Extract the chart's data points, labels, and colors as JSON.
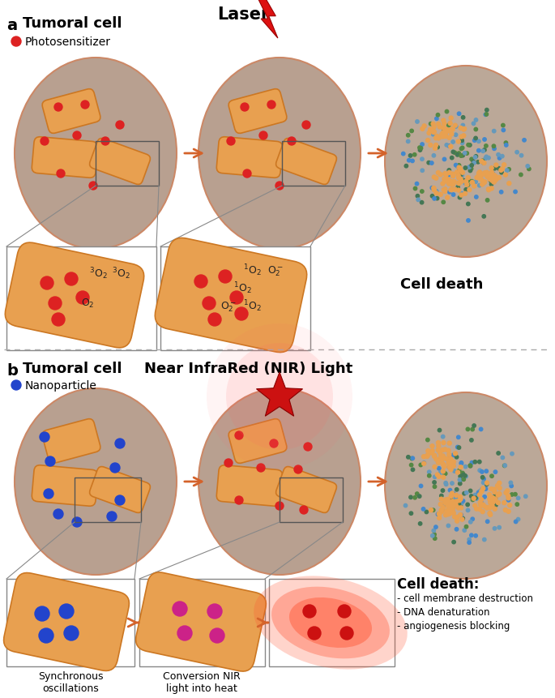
{
  "fig_width": 6.85,
  "fig_height": 8.62,
  "dpi": 100,
  "bg_color": "#ffffff",
  "cell_fill_outer": "#c0a898",
  "cell_fill_center": "#d8c0b0",
  "cell_edge": "#cc8866",
  "organelle_fill": "#e8a050",
  "organelle_edge": "#cc7722",
  "photosensitizer_color": "#dd2222",
  "nanoparticle_color": "#2244cc",
  "magenta_color": "#cc2288",
  "arrow_color": "#d4622a",
  "box_color": "#888888",
  "inset_fill": "#fff8ee",
  "label_a": "a",
  "label_b": "b",
  "title_a1": "Tumoral cell",
  "title_a2": "Laser",
  "legend_a": "Photosensitizer",
  "title_b1": "Tumoral cell",
  "title_b2": "Near InfraRed (NIR) Light",
  "legend_b": "Nanoparticle",
  "cell_death_a": "Cell death",
  "cell_death_b": "Cell death:",
  "cell_death_b_items": [
    "- cell membrane destruction",
    "- DNA denaturation",
    "- angiogenesis blocking"
  ],
  "sync_label": "Synchronous\noscillations",
  "conv_label": "Conversion NIR\nlight into heat"
}
